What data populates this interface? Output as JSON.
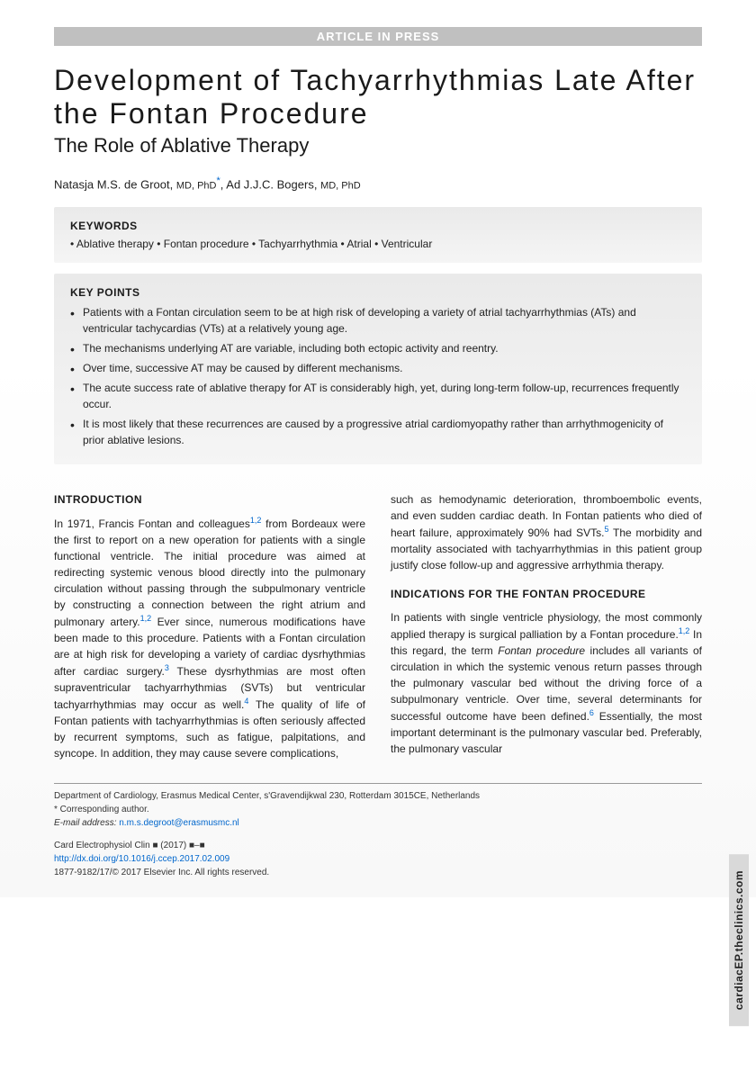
{
  "pressBar": "ARTICLE IN PRESS",
  "title": "Development of Tachyarrhythmias Late After the Fontan Procedure",
  "subtitle": "The Role of Ablative Therapy",
  "authors": {
    "a1_name": "Natasja M.S. de Groot",
    "a1_deg": "MD, PhD",
    "a2_name": "Ad J.J.C. Bogers",
    "a2_deg": "MD, PhD"
  },
  "keywordsHeading": "KEYWORDS",
  "keywords": "• Ablative therapy • Fontan procedure • Tachyarrhythmia • Atrial • Ventricular",
  "keypointsHeading": "KEY POINTS",
  "keypoints": [
    "Patients with a Fontan circulation seem to be at high risk of developing a variety of atrial tachyarrhythmias (ATs) and ventricular tachycardias (VTs) at a relatively young age.",
    "The mechanisms underlying AT are variable, including both ectopic activity and reentry.",
    "Over time, successive AT may be caused by different mechanisms.",
    "The acute success rate of ablative therapy for AT is considerably high, yet, during long-term follow-up, recurrences frequently occur.",
    "It is most likely that these recurrences are caused by a progressive atrial cardiomyopathy rather than arrhythmogenicity of prior ablative lesions."
  ],
  "introHeading": "INTRODUCTION",
  "intro_p1a": "In 1971, Francis Fontan and colleagues",
  "intro_ref1": "1,2",
  "intro_p1b": " from Bordeaux were the first to report on a new operation for patients with a single functional ventricle. The initial procedure was aimed at redirecting systemic venous blood directly into the pulmonary circulation without passing through the subpulmonary ventricle by constructing a connection between the right atrium and pulmonary artery.",
  "intro_ref2": "1,2",
  "intro_p1c": " Ever since, numerous modifications have been made to this procedure. Patients with a Fontan circulation are at high risk for developing a variety of cardiac dysrhythmias after cardiac surgery.",
  "intro_ref3": "3",
  "intro_p1d": " These dysrhythmias are most often supraventricular tachyarrhythmias (SVTs) but ventricular tachyarrhythmias may occur as well.",
  "intro_ref4": "4",
  "intro_p1e": " The quality of life of Fontan patients with tachyarrhythmias is often seriously affected by recurrent symptoms, such as fatigue, palpitations, and syncope. In addition, they may cause severe complications,",
  "col2_p1a": "such as hemodynamic deterioration, thromboembolic events, and even sudden cardiac death. In Fontan patients who died of heart failure, approximately 90% had SVTs.",
  "col2_ref5": "5",
  "col2_p1b": " The morbidity and mortality associated with tachyarrhythmias in this patient group justify close follow-up and aggressive arrhythmia therapy.",
  "indicationsHeading": "INDICATIONS FOR THE FONTAN PROCEDURE",
  "ind_p1a": "In patients with single ventricle physiology, the most commonly applied therapy is surgical palliation by a Fontan procedure.",
  "ind_ref1": "1,2",
  "ind_p1b": " In this regard, the term ",
  "ind_italic": "Fontan procedure",
  "ind_p1c": " includes all variants of circulation in which the systemic venous return passes through the pulmonary vascular bed without the driving force of a subpulmonary ventricle. Over time, several determinants for successful outcome have been defined.",
  "ind_ref6": "6",
  "ind_p1d": " Essentially, the most important determinant is the pulmonary vascular bed. Preferably, the pulmonary vascular",
  "footer": {
    "affiliation": "Department of Cardiology, Erasmus Medical Center, s'Gravendijkwal 230, Rotterdam 3015CE, Netherlands",
    "corr": "* Corresponding author.",
    "emailLabel": "E-mail address:",
    "email": "n.m.s.degroot@erasmusmc.nl",
    "journal": "Card Electrophysiol Clin ■ (2017) ■–■",
    "doi": "http://dx.doi.org/10.1016/j.ccep.2017.02.009",
    "copyright": "1877-9182/17/© 2017 Elsevier Inc. All rights reserved."
  },
  "sideTab": "cardiacEP.theclinics.com"
}
